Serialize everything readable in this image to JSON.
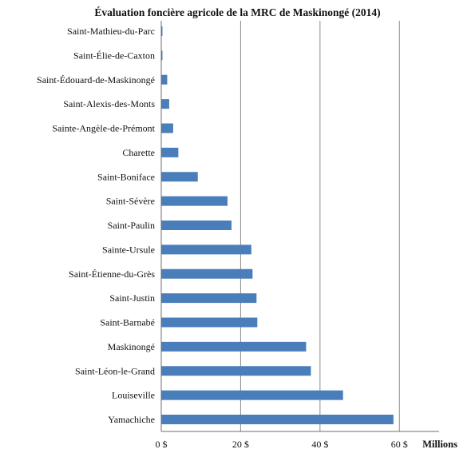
{
  "chart_data": {
    "type": "bar",
    "orientation": "horizontal",
    "title": "Évaluation foncière agricole de la MRC de Maskinongé (2014)",
    "xlabel": "",
    "ylabel": "",
    "unit_label": "Millions",
    "xlim": [
      0,
      70
    ],
    "xticks": [
      0,
      20,
      40,
      60
    ],
    "xtick_labels": [
      "0 $",
      "20 $",
      "40 $",
      "60 $"
    ],
    "grid": "vertical",
    "bar_color": "#4a7ebb",
    "categories": [
      "Saint-Mathieu-du-Parc",
      "Saint-Élie-de-Caxton",
      "Saint-Édouard-de-Maskinongé",
      "Saint-Alexis-des-Monts",
      "Sainte-Angèle-de-Prémont",
      "Charette",
      "Saint-Boniface",
      "Saint-Sévère",
      "Saint-Paulin",
      "Sainte-Ursule",
      "Saint-Étienne-du-Grès",
      "Saint-Justin",
      "Saint-Barnabé",
      "Maskinongé",
      "Saint-Léon-le-Grand",
      "Louiseville",
      "Yamachiche"
    ],
    "values": [
      0.3,
      0.3,
      1.5,
      2.0,
      3.0,
      4.3,
      9.2,
      16.7,
      17.7,
      22.7,
      23.0,
      24.0,
      24.2,
      36.5,
      37.7,
      45.8,
      58.5
    ]
  }
}
